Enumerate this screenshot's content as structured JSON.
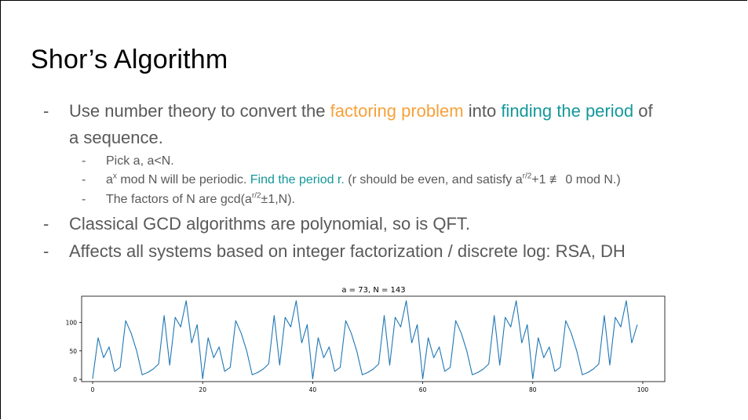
{
  "slide": {
    "title": "Shor’s Algorithm",
    "bullets": {
      "dash": "-",
      "b1_pre": "Use number theory to convert the ",
      "b1_hl1": "factoring problem",
      "b1_mid": " into ",
      "b1_hl2": "finding the period",
      "b1_post": " of",
      "b1_line2": "a sequence.",
      "s1": "Pick a, a<N.",
      "s2_a": "a",
      "s2_sup": "x",
      "s2_b": " mod N will be periodic.  ",
      "s2_hl": "Find the period r.",
      "s2_c": "  (r should be even, and satisfy a",
      "s2_sup2": "r/2",
      "s2_d": "+1 ≢ 0 mod N.)",
      "s3_a": "The factors of N are gcd(a",
      "s3_sup": "r/2",
      "s3_b": "±1,N).",
      "b2": "Classical GCD algorithms are polynomial, so is QFT.",
      "b3": "Affects all systems based on integer factorization / discrete log: RSA, DH"
    },
    "colors": {
      "orange": "#f6a13a",
      "teal": "#15979a",
      "text": "#595959",
      "line": "#1f77b4"
    }
  },
  "chart_data": {
    "type": "line",
    "title": "a = 73, N = 143",
    "xlabel": "",
    "ylabel": "",
    "xlim": [
      -2,
      104
    ],
    "ylim": [
      -4,
      146
    ],
    "xticks": [
      0,
      20,
      40,
      60,
      80,
      100
    ],
    "yticks": [
      0,
      50,
      100
    ],
    "series": [
      {
        "x": [
          0,
          1,
          2,
          3,
          4,
          5,
          6,
          7,
          8,
          9,
          10,
          11,
          12,
          13,
          14,
          15,
          16,
          17,
          18,
          19,
          20,
          21,
          22,
          23,
          24,
          25,
          26,
          27,
          28,
          29,
          30,
          31,
          32,
          33,
          34,
          35,
          36,
          37,
          38,
          39,
          40,
          41,
          42,
          43,
          44,
          45,
          46,
          47,
          48,
          49,
          50,
          51,
          52,
          53,
          54,
          55,
          56,
          57,
          58,
          59,
          60,
          61,
          62,
          63,
          64,
          65,
          66,
          67,
          68,
          69,
          70,
          71,
          72,
          73,
          74,
          75,
          76,
          77,
          78,
          79,
          80,
          81,
          82,
          83,
          84,
          85,
          86,
          87,
          88,
          89,
          90,
          91,
          92,
          93,
          94,
          95,
          96,
          97,
          98,
          99
        ],
        "y": [
          1,
          73,
          38,
          57,
          14,
          21,
          103,
          81,
          50,
          8,
          12,
          18,
          27,
          112,
          25,
          109,
          92,
          138,
          64,
          96,
          1,
          73,
          38,
          57,
          14,
          21,
          103,
          81,
          50,
          8,
          12,
          18,
          27,
          112,
          25,
          109,
          92,
          138,
          64,
          96,
          1,
          73,
          38,
          57,
          14,
          21,
          103,
          81,
          50,
          8,
          12,
          18,
          27,
          112,
          25,
          109,
          92,
          138,
          64,
          96,
          1,
          73,
          38,
          57,
          14,
          21,
          103,
          81,
          50,
          8,
          12,
          18,
          27,
          112,
          25,
          109,
          92,
          138,
          64,
          96,
          1,
          73,
          38,
          57,
          14,
          21,
          103,
          81,
          50,
          8,
          12,
          18,
          27,
          112,
          25,
          109,
          92,
          138,
          64,
          96
        ]
      }
    ]
  }
}
